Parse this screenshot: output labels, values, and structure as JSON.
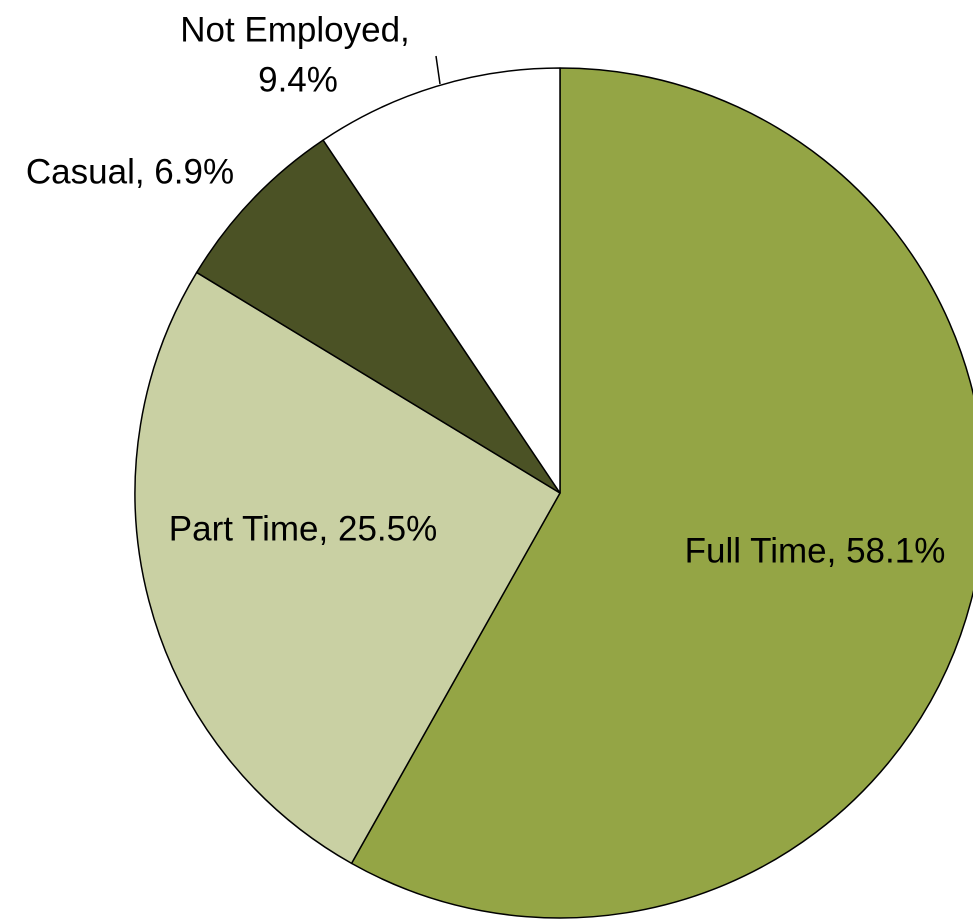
{
  "chart_data": {
    "type": "pie",
    "values": [
      58.1,
      25.5,
      6.9,
      9.4
    ],
    "value_labels": [
      "Full Time, 58.1%",
      "Part Time, 25.5%",
      "Casual, 6.9%",
      [
        "Not Employed,",
        "9.4%"
      ]
    ],
    "colors": [
      "#94a545",
      "#c9d0a3",
      "#4b5225",
      "#ffffff"
    ]
  }
}
